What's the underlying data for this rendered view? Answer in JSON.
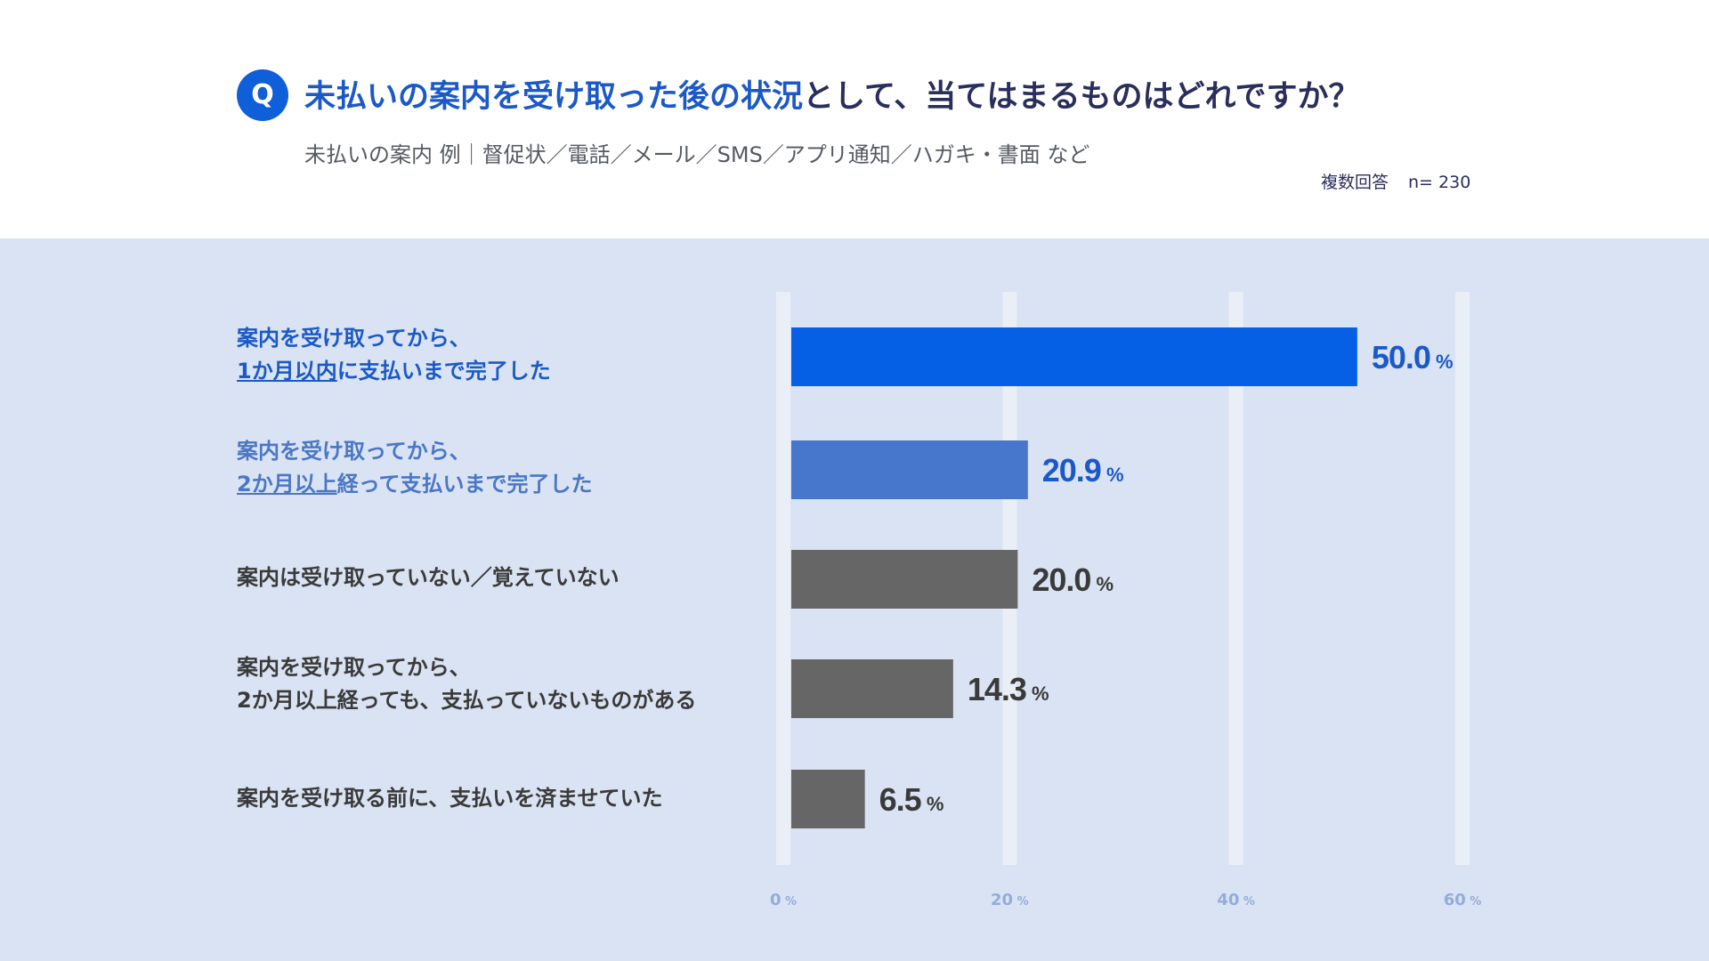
{
  "header": {
    "q_icon": "Q",
    "title_highlight": "未払いの案内を受け取った後の状況",
    "title_rest": "として、当てはまるものはどれですか？",
    "subtitle": "未払いの案内 例｜督促状／電話／メール／SMS／アプリ通知／ハガキ・書面 など",
    "note_multi": "複数回答",
    "note_n": "n= 230"
  },
  "labels": [
    {
      "line1": "案内を受け取ってから、",
      "line2_underlined": "1か月以内",
      "line2_rest": "に支払いまで完了した"
    },
    {
      "line1": "案内を受け取ってから、",
      "line2_underlined": "2か月以上",
      "line2_rest": "経って支払いまで完了した"
    },
    {
      "line1": "案内は受け取っていない／覚えていない"
    },
    {
      "line1": "案内を受け取ってから、",
      "line2": "2か月以上経っても、支払っていないものがある"
    },
    {
      "line1": "案内を受け取る前に、支払いを済ませていた"
    }
  ],
  "chart_data": {
    "type": "bar",
    "orientation": "horizontal",
    "title": "未払いの案内を受け取った後の状況として、当てはまるものはどれですか？",
    "categories": [
      "案内を受け取ってから、1か月以内に支払いまで完了した",
      "案内を受け取ってから、2か月以上経って支払いまで完了した",
      "案内は受け取っていない／覚えていない",
      "案内を受け取ってから、2か月以上経っても、支払っていないものがある",
      "案内を受け取る前に、支払いを済ませていた"
    ],
    "values": [
      50.0,
      20.9,
      20.0,
      14.3,
      6.5
    ],
    "value_labels": [
      "50.0",
      "20.9",
      "20.0",
      "14.3",
      "6.5"
    ],
    "unit": "%",
    "xlim": [
      0,
      60
    ],
    "ticks": [
      0,
      20,
      40,
      60
    ],
    "tick_labels": [
      "0",
      "20",
      "40",
      "60"
    ],
    "bar_colors": [
      "#0560e6",
      "#4677cc",
      "#666666",
      "#666666",
      "#666666"
    ],
    "value_colors": [
      "#1b59c8",
      "#1b59c8",
      "#3a3a3a",
      "#3a3a3a",
      "#3a3a3a"
    ],
    "tick_color": "#94acd8",
    "grid_color": "#eaeef7",
    "grid": true
  }
}
